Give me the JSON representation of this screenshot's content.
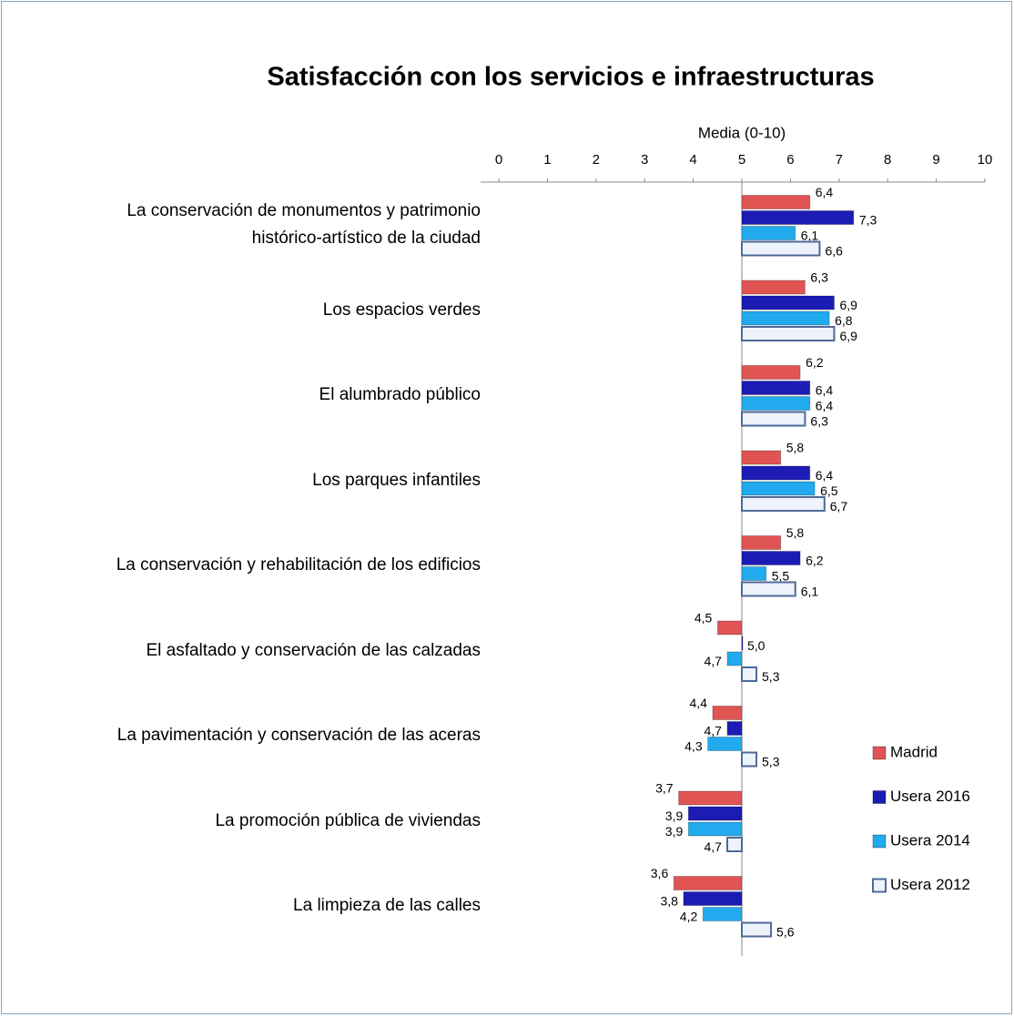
{
  "chart_data": {
    "type": "hbar",
    "title": "Satisfacción con los servicios e infraestructuras",
    "x_label": "Media (0-10)",
    "xlim": [
      0,
      10
    ],
    "xticks": [
      0,
      1,
      2,
      3,
      4,
      5,
      6,
      7,
      8,
      9,
      10
    ],
    "baseline": 5,
    "legend": "right",
    "categories": [
      "La conservación de monumentos y patrimonio\nhistórico-artístico de la ciudad",
      "Los espacios verdes",
      "El alumbrado público",
      "Los parques infantiles",
      "La conservación y rehabilitación de los edificios",
      "El asfaltado y conservación de las calzadas",
      "La pavimentación y conservación de las aceras",
      "La promoción pública de viviendas",
      "La limpieza de las calles"
    ],
    "series": [
      {
        "name": "Madrid",
        "color": "#e05454",
        "values": [
          6.4,
          6.3,
          6.2,
          5.8,
          5.8,
          4.5,
          4.4,
          3.7,
          3.6
        ],
        "value_labels": [
          "6,4",
          "6,3",
          "6,2",
          "5,8",
          "5,8",
          "4,5",
          "4,4",
          "3,7",
          "3,6"
        ]
      },
      {
        "name": "Usera 2016",
        "color": "#1c1cb4",
        "values": [
          7.3,
          6.9,
          6.4,
          6.4,
          6.2,
          5.0,
          4.7,
          3.9,
          3.8
        ],
        "value_labels": [
          "7,3",
          "6,9",
          "6,4",
          "6,4",
          "6,2",
          "5,0",
          "4,7",
          "3,9",
          "3,8"
        ]
      },
      {
        "name": "Usera 2014",
        "color": "#22aaee",
        "values": [
          6.1,
          6.8,
          6.4,
          6.5,
          5.5,
          4.7,
          4.3,
          3.9,
          4.2
        ],
        "value_labels": [
          "6,1",
          "6,8",
          "6,4",
          "6,5",
          "5,5",
          "4,7",
          "4,3",
          "3,9",
          "4,2"
        ]
      },
      {
        "name": "Usera 2012",
        "color": "#eef3fb",
        "values": [
          6.6,
          6.9,
          6.3,
          6.7,
          6.1,
          5.3,
          5.3,
          4.7,
          5.6
        ],
        "value_labels": [
          "6,6",
          "6,9",
          "6,3",
          "6,7",
          "6,1",
          "5,3",
          "5,3",
          "4,7",
          "5,6"
        ]
      }
    ]
  }
}
